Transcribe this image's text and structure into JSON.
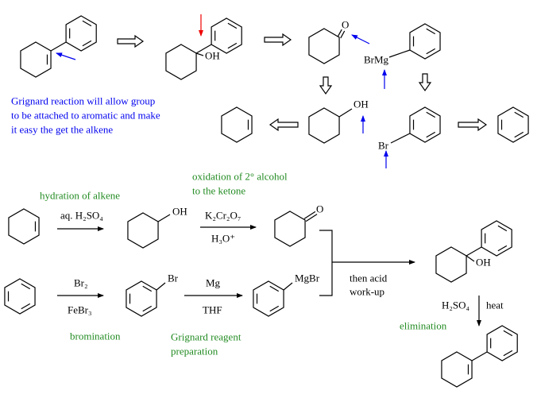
{
  "retrosynthesis": {
    "hydroxyl_label": "OH",
    "ketone_label": "O",
    "grignard_label": "BrMg",
    "alcohol_label": "OH",
    "bromide_label": "Br",
    "note": [
      "Grignard reaction will allow group",
      "to be attached to aromatic and make",
      "it easy the get the alkene"
    ]
  },
  "synthesis": {
    "hydration": {
      "note": "hydration of alkene",
      "reagent": "aq. H₂SO₄",
      "product_label": "OH"
    },
    "oxidation": {
      "note": [
        "oxidation of 2° alcohol",
        "to the ketone"
      ],
      "reagents": [
        "K₂Cr₂O₇",
        "H₃O⁺"
      ],
      "product_label": "O"
    },
    "bromination": {
      "note": "bromination",
      "reagents": [
        "Br₂",
        "FeBr₃"
      ],
      "product_label": "Br"
    },
    "grignard": {
      "note": [
        "Grignard reagent",
        "preparation"
      ],
      "reagents": [
        "Mg",
        "THF"
      ],
      "product_label": "MgBr"
    },
    "addition": {
      "reagent": [
        "then acid",
        "work-up"
      ],
      "product_label": "OH"
    },
    "elimination": {
      "note": "elimination",
      "reagents": [
        "H₂SO₄",
        "heat"
      ]
    }
  }
}
